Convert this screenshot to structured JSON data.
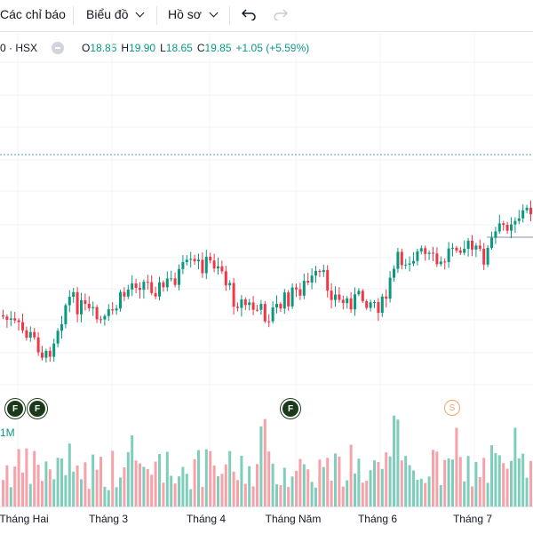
{
  "toolbar": {
    "indicators_label": "Các chỉ báo",
    "chart_label": "Biểu đồ",
    "profile_label": "Hồ sơ",
    "undo_icon": "undo-icon",
    "redo_icon": "redo-icon"
  },
  "legend": {
    "symbol": "0 · HSX",
    "o_label": "O",
    "o_value": "18.85",
    "h_label": "H",
    "h_value": "19.90",
    "l_label": "L",
    "l_value": "18.65",
    "c_label": "C",
    "c_value": "19.85",
    "change": "+1.05 (+5.59%)"
  },
  "volume_label": "1M",
  "markers": [
    "F",
    "F",
    "F",
    "S"
  ],
  "colors": {
    "up": "#089981",
    "down": "#f23645",
    "up_vol": "#7fcdbb",
    "down_vol": "#f7a1a8"
  },
  "chart_data": {
    "type": "candlestick",
    "x_labels": [
      "Tháng Hai",
      "Tháng 3",
      "Tháng 4",
      "Tháng Năm",
      "Tháng 6",
      "Tháng 7"
    ],
    "last_close": 19.85
  }
}
